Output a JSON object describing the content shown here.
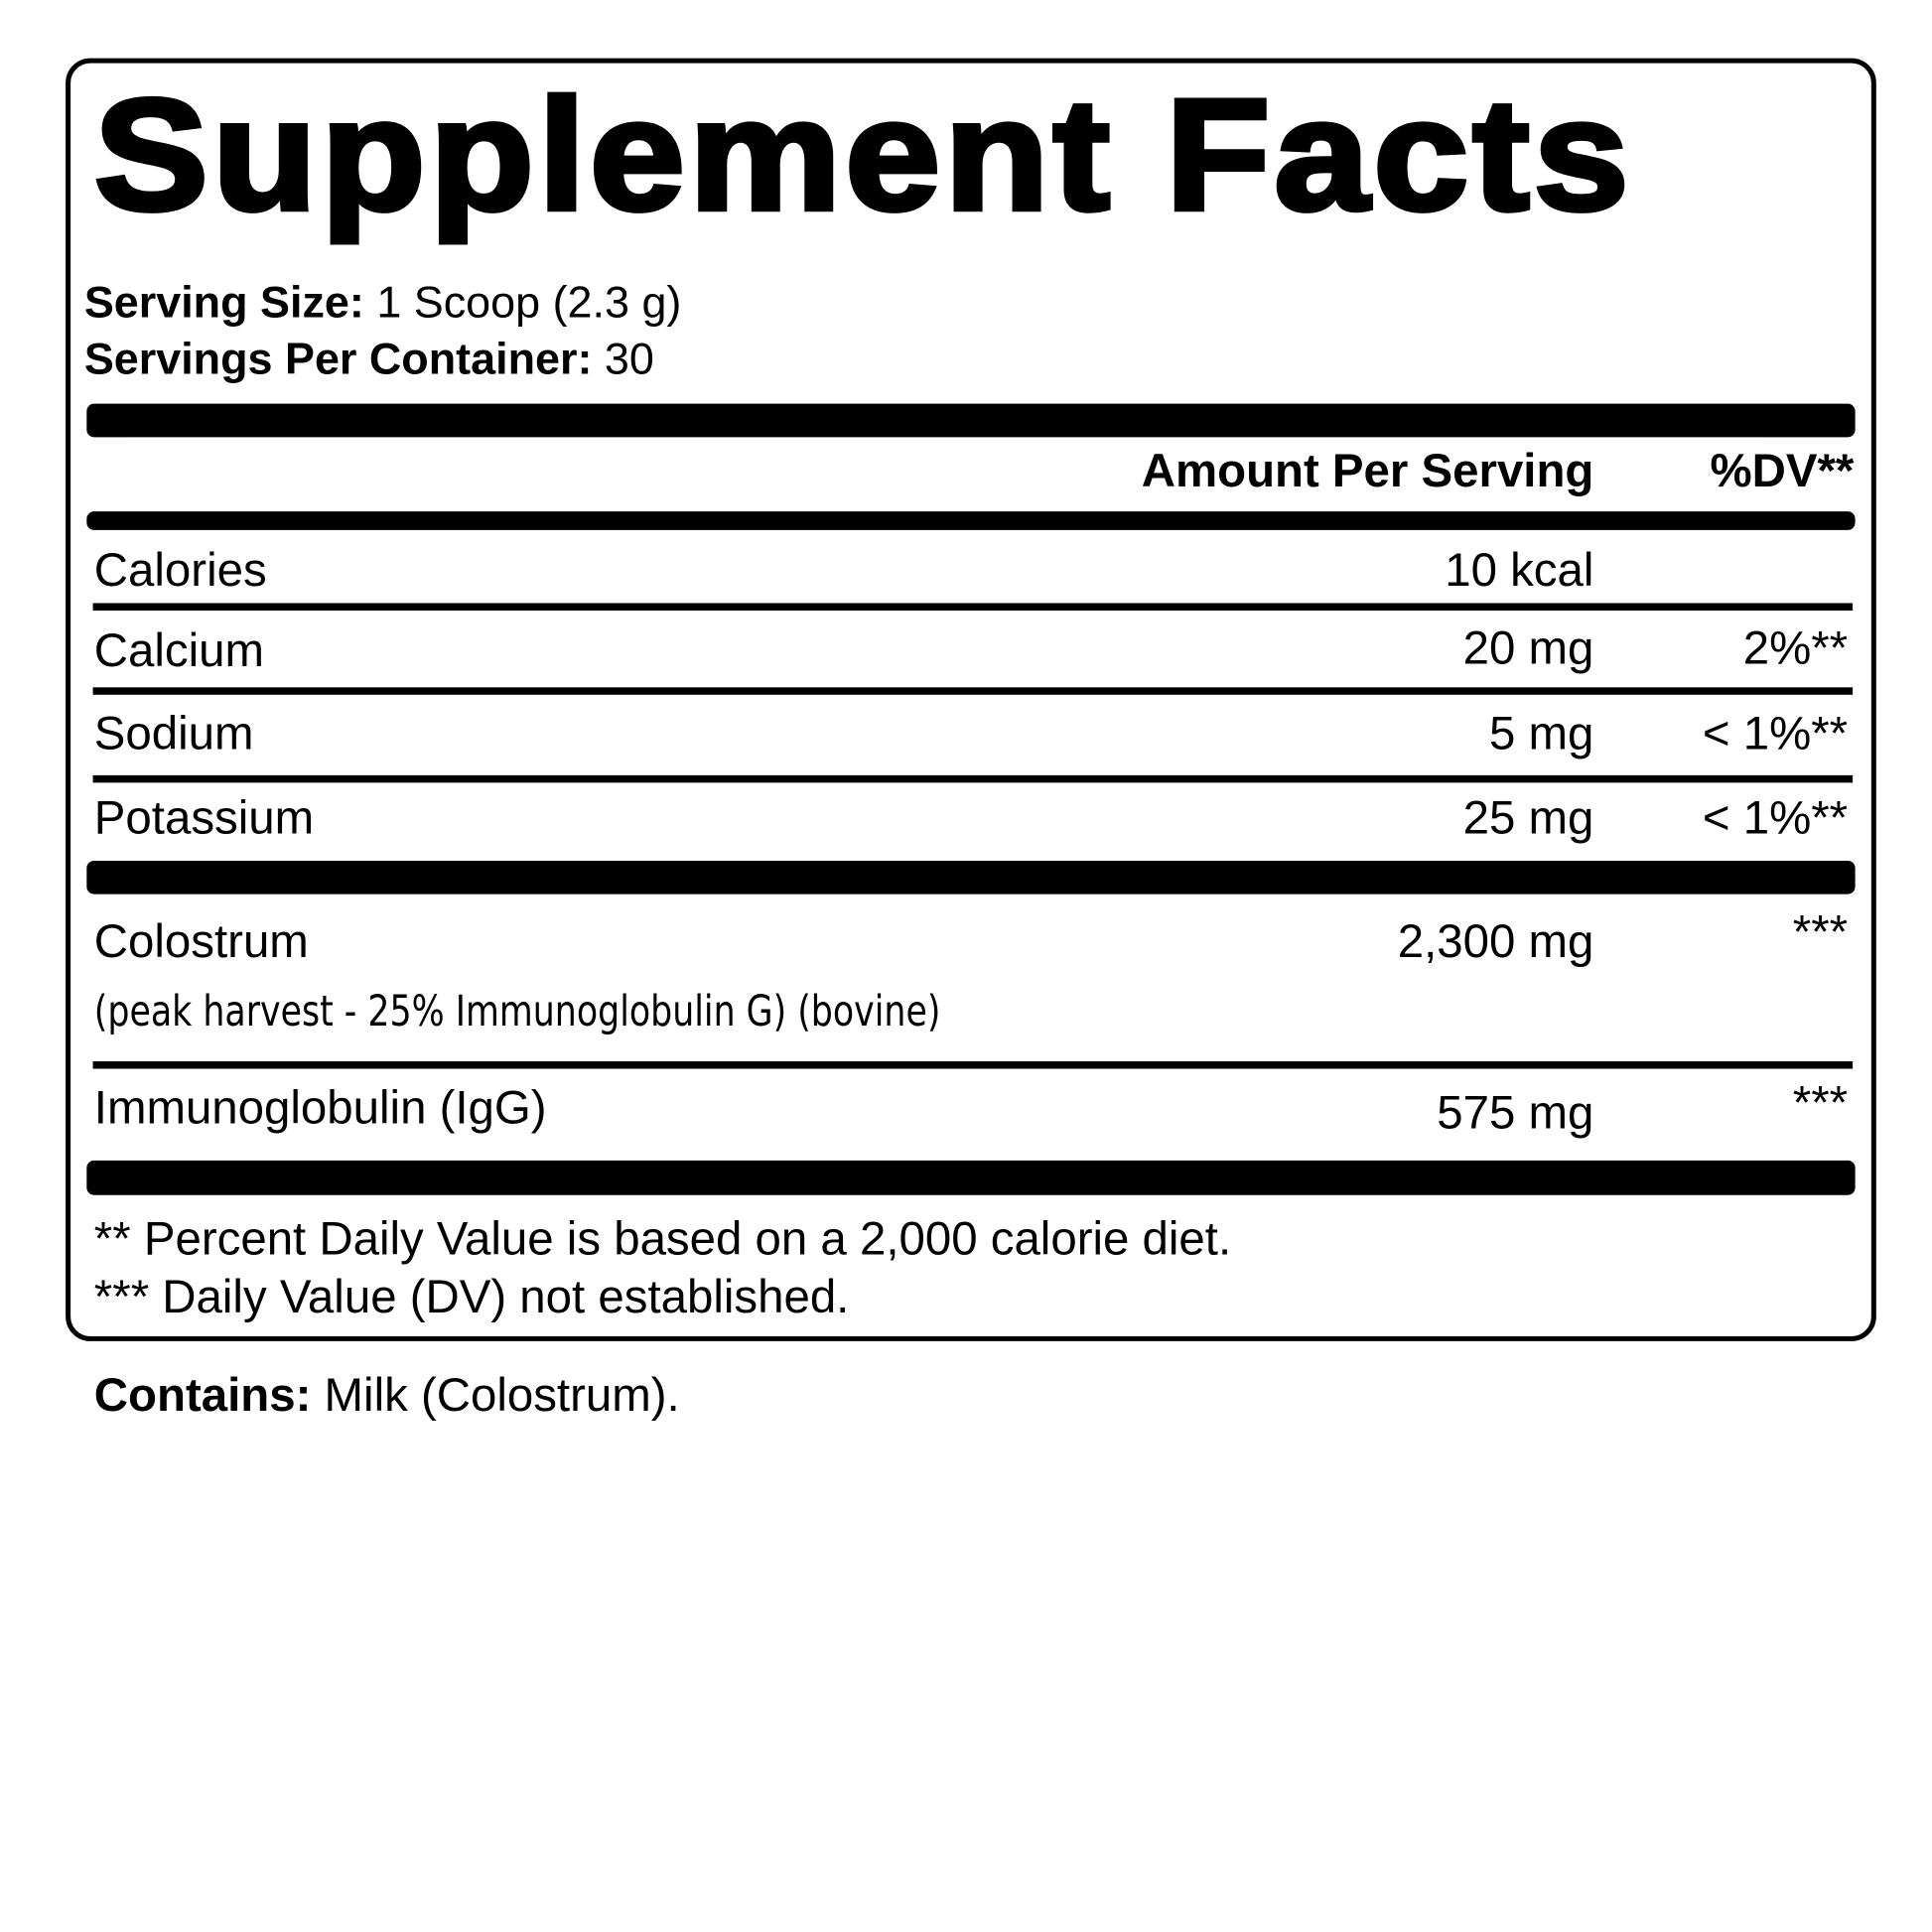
{
  "title": "Supplement Facts",
  "serving_size": {
    "label": "Serving Size:",
    "value": "1 Scoop (2.3 g)"
  },
  "servings_per_container": {
    "label": "Servings Per Container:",
    "value": "30"
  },
  "header": {
    "amount": "Amount Per Serving",
    "dv": "%DV**"
  },
  "rows": [
    {
      "name": "Calories",
      "amount": "10 kcal",
      "dv": ""
    },
    {
      "name": "Calcium",
      "amount": "20 mg",
      "dv": "2%**"
    },
    {
      "name": "Sodium",
      "amount": "5 mg",
      "dv": "< 1%**"
    },
    {
      "name": "Potassium",
      "amount": "25 mg",
      "dv": "< 1%**"
    },
    {
      "name": "Colostrum",
      "amount": "2,300 mg",
      "dv": "***",
      "note": "(peak harvest - 25% Immunoglobulin G) (bovine)"
    },
    {
      "name": "Immunoglobulin (IgG)",
      "amount": "575 mg",
      "dv": "***"
    }
  ],
  "footnotes": [
    "** Percent Daily Value is based on a 2,000 calorie diet.",
    "*** Daily Value (DV) not established."
  ],
  "contains": {
    "label": "Contains:",
    "value": "Milk (Colostrum)."
  }
}
